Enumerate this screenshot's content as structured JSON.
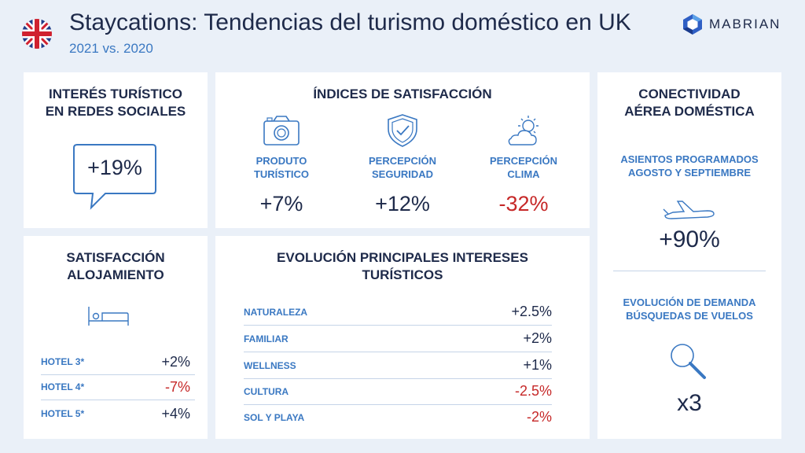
{
  "header": {
    "title": "Staycations: Tendencias del turismo doméstico en UK",
    "subtitle": "2021 vs. 2020",
    "logo_text": "MABRIAN",
    "flag_icon": "uk-flag-icon"
  },
  "social": {
    "title_line1": "INTERÉS TURÍSTICO",
    "title_line2": "EN  REDES SOCIALES",
    "value": "+19%",
    "icon": "speech-bubble-icon"
  },
  "satisfaction": {
    "title": "ÍNDICES DE SATISFACCIÓN",
    "items": [
      {
        "label_line1": "PRODUTO",
        "label_line2": "TURÍSTICO",
        "value": "+7%",
        "icon": "camera-icon",
        "negative": false
      },
      {
        "label_line1": "PERCEPCIÓN",
        "label_line2": "SEGURIDAD",
        "value": "+12%",
        "icon": "shield-icon",
        "negative": false
      },
      {
        "label_line1": "PERCEPCIÓN",
        "label_line2": "CLIMA",
        "value": "-32%",
        "icon": "weather-icon",
        "negative": true
      }
    ]
  },
  "connectivity": {
    "title_line1": "CONECTIVIDAD",
    "title_line2": "AÉREA DOMÉSTICA",
    "seats_label_line1": "ASIENTOS PROGRAMADOS",
    "seats_label_line2": "AGOSTO Y SEPTIEMBRE",
    "seats_value": "+90%",
    "seats_icon": "airplane-icon",
    "demand_label_line1": "EVOLUCIÓN DE DEMANDA",
    "demand_label_line2": "BÚSQUEDAS DE VUELOS",
    "demand_value": "x3",
    "demand_icon": "magnifier-icon"
  },
  "accommodation": {
    "title_line1": "SATISFACCIÓN",
    "title_line2": "ALOJAMIENTO",
    "icon": "bed-icon",
    "rows": [
      {
        "label": "HOTEL 3*",
        "value": "+2%",
        "negative": false
      },
      {
        "label": "HOTEL 4*",
        "value": "-7%",
        "negative": true
      },
      {
        "label": "HOTEL 5*",
        "value": "+4%",
        "negative": false
      }
    ]
  },
  "interests": {
    "title_line1": "EVOLUCIÓN PRINCIPALES INTERESES",
    "title_line2": "TURÍSTICOS",
    "rows": [
      {
        "label": "NATURALEZA",
        "value": "+2.5%",
        "negative": false
      },
      {
        "label": "FAMILIAR",
        "value": "+2%",
        "negative": false
      },
      {
        "label": "WELLNESS",
        "value": "+1%",
        "negative": false
      },
      {
        "label": "CULTURA",
        "value": "-2.5%",
        "negative": true
      },
      {
        "label": "SOL Y PLAYA",
        "value": "-2%",
        "negative": true
      }
    ]
  },
  "colors": {
    "background": "#eaf0f8",
    "navy": "#1e2a4a",
    "accent_blue": "#3a78c2",
    "negative_red": "#c62828"
  }
}
